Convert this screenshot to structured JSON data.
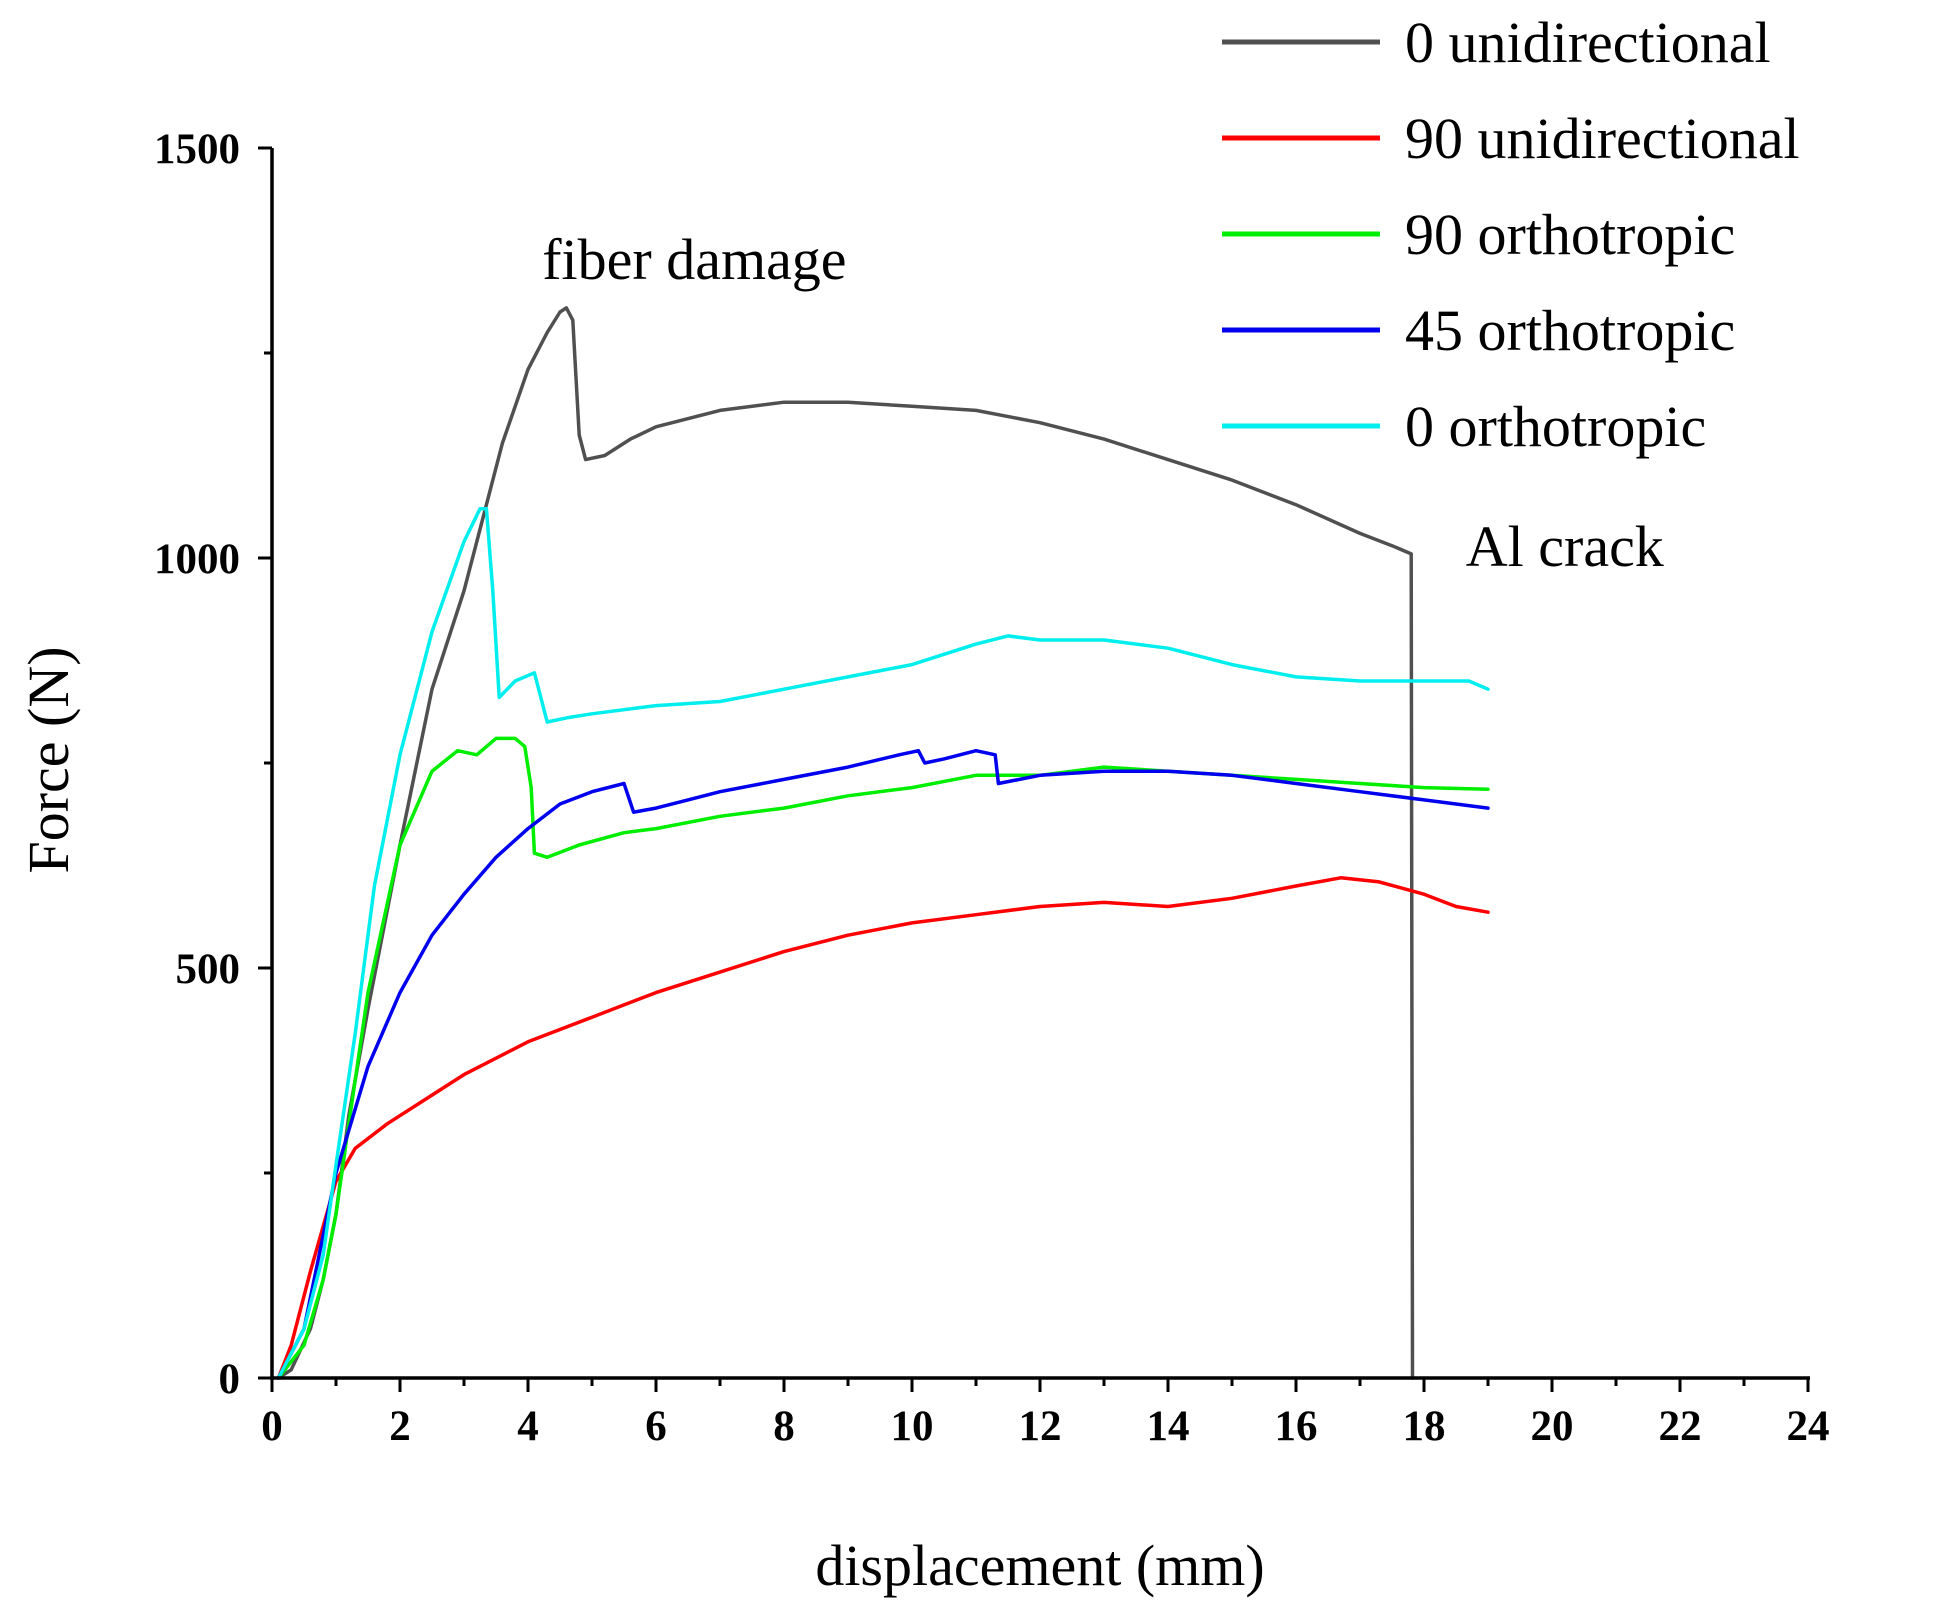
{
  "chart_data": {
    "type": "line",
    "title": "",
    "xlabel": "displacement (mm)",
    "ylabel": "Force (N)",
    "xlim": [
      0,
      24
    ],
    "ylim": [
      0,
      1500
    ],
    "xticks": [
      0,
      2,
      4,
      6,
      8,
      10,
      12,
      14,
      16,
      18,
      20,
      22,
      24
    ],
    "xtick_labels": [
      "0",
      "2",
      "4",
      "6",
      "8",
      "10",
      "12",
      "14",
      "16",
      "18",
      "20",
      "22",
      "24"
    ],
    "yticks": [
      0,
      500,
      1000,
      1500
    ],
    "ytick_labels": [
      "0",
      "500",
      "1000",
      "1500"
    ],
    "grid": false,
    "legend_position": "top-right",
    "annotations": [
      {
        "text": "fiber damage",
        "x": 6.6,
        "y": 1340
      },
      {
        "text": "Al crack",
        "x": 20.2,
        "y": 990
      }
    ],
    "series": [
      {
        "name": "0 unidirectional",
        "color": "#505050",
        "points": [
          [
            0.1,
            0
          ],
          [
            0.3,
            10
          ],
          [
            0.6,
            60
          ],
          [
            0.8,
            120
          ],
          [
            1.0,
            200
          ],
          [
            1.2,
            320
          ],
          [
            1.5,
            450
          ],
          [
            2.0,
            650
          ],
          [
            2.5,
            840
          ],
          [
            3.0,
            960
          ],
          [
            3.3,
            1050
          ],
          [
            3.6,
            1140
          ],
          [
            4.0,
            1230
          ],
          [
            4.3,
            1275
          ],
          [
            4.5,
            1300
          ],
          [
            4.6,
            1305
          ],
          [
            4.7,
            1290
          ],
          [
            4.8,
            1150
          ],
          [
            4.9,
            1120
          ],
          [
            5.2,
            1125
          ],
          [
            5.6,
            1145
          ],
          [
            6.0,
            1160
          ],
          [
            7.0,
            1180
          ],
          [
            8.0,
            1190
          ],
          [
            9.0,
            1190
          ],
          [
            10.0,
            1185
          ],
          [
            11.0,
            1180
          ],
          [
            12.0,
            1165
          ],
          [
            13.0,
            1145
          ],
          [
            14.0,
            1120
          ],
          [
            15.0,
            1095
          ],
          [
            16.0,
            1065
          ],
          [
            17.0,
            1030
          ],
          [
            17.5,
            1015
          ],
          [
            17.8,
            1005
          ],
          [
            17.82,
            0
          ]
        ]
      },
      {
        "name": "90 unidirectional",
        "color": "#ff0000",
        "points": [
          [
            0.1,
            0
          ],
          [
            0.3,
            40
          ],
          [
            0.6,
            130
          ],
          [
            1.0,
            240
          ],
          [
            1.3,
            280
          ],
          [
            1.8,
            310
          ],
          [
            2.5,
            345
          ],
          [
            3.0,
            370
          ],
          [
            4.0,
            410
          ],
          [
            5.0,
            440
          ],
          [
            6.0,
            470
          ],
          [
            7.0,
            495
          ],
          [
            8.0,
            520
          ],
          [
            9.0,
            540
          ],
          [
            10.0,
            555
          ],
          [
            11.0,
            565
          ],
          [
            12.0,
            575
          ],
          [
            13.0,
            580
          ],
          [
            14.0,
            575
          ],
          [
            15.0,
            585
          ],
          [
            16.0,
            600
          ],
          [
            16.7,
            610
          ],
          [
            17.3,
            605
          ],
          [
            18.0,
            590
          ],
          [
            18.5,
            575
          ],
          [
            19.0,
            568
          ]
        ]
      },
      {
        "name": "90 orthotropic",
        "color": "#00ee00",
        "points": [
          [
            0.1,
            0
          ],
          [
            0.5,
            40
          ],
          [
            0.8,
            120
          ],
          [
            1.0,
            200
          ],
          [
            1.2,
            310
          ],
          [
            1.5,
            470
          ],
          [
            2.0,
            650
          ],
          [
            2.5,
            740
          ],
          [
            2.9,
            765
          ],
          [
            3.2,
            760
          ],
          [
            3.5,
            780
          ],
          [
            3.8,
            780
          ],
          [
            3.95,
            770
          ],
          [
            4.05,
            720
          ],
          [
            4.1,
            640
          ],
          [
            4.3,
            635
          ],
          [
            4.8,
            650
          ],
          [
            5.5,
            665
          ],
          [
            6.0,
            670
          ],
          [
            7.0,
            685
          ],
          [
            8.0,
            695
          ],
          [
            9.0,
            710
          ],
          [
            10.0,
            720
          ],
          [
            11.0,
            735
          ],
          [
            12.0,
            735
          ],
          [
            13.0,
            745
          ],
          [
            14.0,
            740
          ],
          [
            15.0,
            735
          ],
          [
            16.0,
            730
          ],
          [
            17.0,
            725
          ],
          [
            18.0,
            720
          ],
          [
            19.0,
            718
          ]
        ]
      },
      {
        "name": "45 orthotropic",
        "color": "#0000ee",
        "points": [
          [
            0.1,
            0
          ],
          [
            0.5,
            60
          ],
          [
            1.0,
            250
          ],
          [
            1.5,
            380
          ],
          [
            2.0,
            470
          ],
          [
            2.5,
            540
          ],
          [
            3.0,
            590
          ],
          [
            3.5,
            635
          ],
          [
            4.0,
            670
          ],
          [
            4.5,
            700
          ],
          [
            5.0,
            715
          ],
          [
            5.5,
            725
          ],
          [
            5.65,
            690
          ],
          [
            6.0,
            695
          ],
          [
            6.5,
            705
          ],
          [
            7.0,
            715
          ],
          [
            8.0,
            730
          ],
          [
            9.0,
            745
          ],
          [
            9.8,
            760
          ],
          [
            10.1,
            765
          ],
          [
            10.2,
            750
          ],
          [
            10.5,
            755
          ],
          [
            11.0,
            765
          ],
          [
            11.3,
            760
          ],
          [
            11.35,
            725
          ],
          [
            12.0,
            735
          ],
          [
            13.0,
            740
          ],
          [
            14.0,
            740
          ],
          [
            15.0,
            735
          ],
          [
            16.0,
            725
          ],
          [
            17.0,
            715
          ],
          [
            18.0,
            705
          ],
          [
            19.0,
            695
          ]
        ]
      },
      {
        "name": "0 orthotropic",
        "color": "#00eeee",
        "points": [
          [
            0.1,
            0
          ],
          [
            0.5,
            60
          ],
          [
            0.8,
            150
          ],
          [
            1.0,
            260
          ],
          [
            1.3,
            420
          ],
          [
            1.6,
            600
          ],
          [
            2.0,
            760
          ],
          [
            2.5,
            910
          ],
          [
            3.0,
            1020
          ],
          [
            3.25,
            1060
          ],
          [
            3.35,
            1060
          ],
          [
            3.45,
            960
          ],
          [
            3.55,
            830
          ],
          [
            3.8,
            850
          ],
          [
            4.1,
            860
          ],
          [
            4.2,
            830
          ],
          [
            4.3,
            800
          ],
          [
            4.6,
            805
          ],
          [
            5.0,
            810
          ],
          [
            6.0,
            820
          ],
          [
            7.0,
            825
          ],
          [
            8.0,
            840
          ],
          [
            9.0,
            855
          ],
          [
            10.0,
            870
          ],
          [
            11.0,
            895
          ],
          [
            11.5,
            905
          ],
          [
            12.0,
            900
          ],
          [
            13.0,
            900
          ],
          [
            14.0,
            890
          ],
          [
            15.0,
            870
          ],
          [
            16.0,
            855
          ],
          [
            17.0,
            850
          ],
          [
            18.0,
            850
          ],
          [
            18.7,
            850
          ],
          [
            19.0,
            840
          ]
        ]
      }
    ]
  }
}
